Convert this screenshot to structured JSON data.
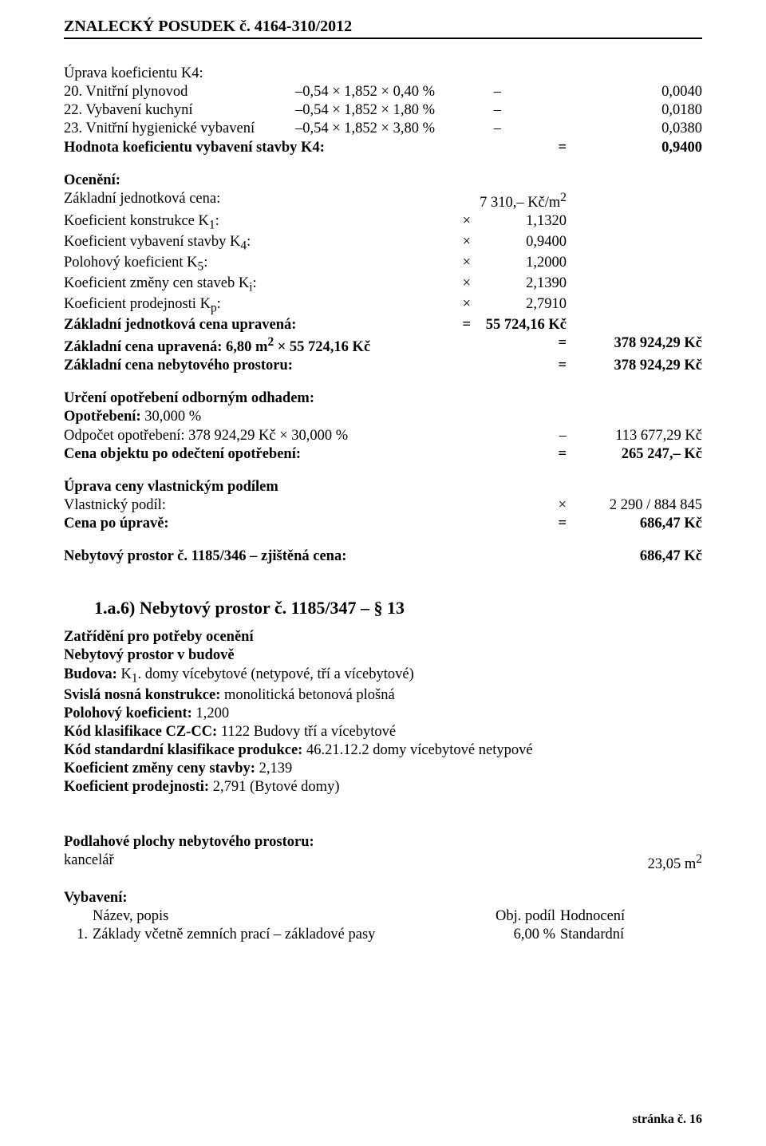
{
  "header": {
    "text": "ZNALECKÝ   POSUDEK č. 4164-310/2012"
  },
  "k4title": "Úprava koeficientu K4:",
  "items": [
    {
      "n": "20.",
      "label": "Vnitřní plynovod",
      "expr": "–0,54 × 1,852 × 0,40 %",
      "sep": "–",
      "val": "0,0040"
    },
    {
      "n": "22.",
      "label": "Vybavení kuchyní",
      "expr": "–0,54 × 1,852 × 1,80 %",
      "sep": "–",
      "val": "0,0180"
    },
    {
      "n": "23.",
      "label": "Vnitřní hygienické vybavení",
      "expr": "–0,54 × 1,852 × 3,80 %",
      "sep": "–",
      "val": "0,0380"
    }
  ],
  "hodnota": {
    "label": "Hodnota koeficientu vybavení stavby K4:",
    "eq": "=",
    "val": "0,9400"
  },
  "oceneni_title": "Ocenění:",
  "calc": [
    {
      "label": "Základní jednotková cena:",
      "op": "",
      "val": "7 310,–  Kč/m2"
    },
    {
      "label": "Koeficient konstrukce K1:",
      "op": "×",
      "val": "1,1320"
    },
    {
      "label": "Koeficient vybavení stavby K4:",
      "op": "×",
      "val": "0,9400"
    },
    {
      "label": "Polohový koeficient K5:",
      "op": "×",
      "val": "1,2000"
    },
    {
      "label": "Koeficient změny cen staveb Ki:",
      "op": "×",
      "val": "2,1390"
    },
    {
      "label": "Koeficient prodejnosti Kp:",
      "op": "×",
      "val": "2,7910"
    },
    {
      "label": "Základní jednotková cena upravená:",
      "op": "=",
      "val": "55 724,16 Kč"
    }
  ],
  "zc_upravena": {
    "label": "Základní cena upravená: 6,80 m2 × 55 724,16 Kč",
    "eq": "=",
    "val": "378 924,29 Kč"
  },
  "zc_nebyt": {
    "label": "Základní cena nebytového prostoru:",
    "eq": "=",
    "val": "378 924,29 Kč"
  },
  "opot_title": "Určení opotřebení odborným odhadem:",
  "opot_line": "Opotřebení: 30,000 %",
  "odpocet": {
    "label": "Odpočet opotřebení: 378 924,29 Kč × 30,000 %",
    "eq": "–",
    "val": "113 677,29 Kč"
  },
  "cena_po_odecteni": {
    "label": "Cena objektu po odečtení opotřebení:",
    "eq": "=",
    "val": "265 247,–  Kč"
  },
  "uprava_podilem": "Úprava ceny vlastnickým podílem",
  "vlastnicky_podil": {
    "label": "Vlastnický podíl:",
    "eq": "×",
    "val": "2 290 / 884 845"
  },
  "cena_po_uprave": {
    "label": "Cena po úpravě:",
    "eq": "=",
    "val": "686,47 Kč"
  },
  "zjistena": {
    "label": "Nebytový prostor č. 1185/346  – zjištěná cena:",
    "val": "686,47 Kč"
  },
  "section": {
    "title": "1.a.6)  Nebytový prostor č. 1185/347 – § 13",
    "zatrideni": "Zatřídění pro potřeby ocenění",
    "lines": [
      {
        "b": "Nebytový prostor v budově",
        "t": ""
      },
      {
        "b": "Budova:",
        "t": " K1. domy vícebytové (netypové, tří a vícebytové)"
      },
      {
        "b": "Svislá nosná konstrukce:",
        "t": " monolitická betonová plošná"
      },
      {
        "b": "Polohový koeficient:",
        "t": " 1,200"
      },
      {
        "b": "Kód klasifikace CZ-CC:",
        "t": " 1122 Budovy tří a vícebytové"
      },
      {
        "b": "Kód standardní klasifikace produkce:",
        "t": " 46.21.12.2     domy vícebytové netypové"
      },
      {
        "b": "Koeficient změny ceny stavby:",
        "t": " 2,139"
      },
      {
        "b": "Koeficient prodejnosti:",
        "t": " 2,791 (Bytové domy)"
      }
    ]
  },
  "podlahove": {
    "label": "Podlahové plochy nebytového prostoru:",
    "item": "kancelář",
    "val": "23,05 m2"
  },
  "vybaveni": {
    "title": "Vybavení:",
    "head": {
      "name": "Název, popis",
      "podil": "Obj. podíl",
      "hodn": "Hodnocení"
    },
    "row": {
      "n": "1.",
      "label": "Základy včetně zemních prací – základové pasy",
      "podil": "6,00 %",
      "hodn": "Standardní"
    }
  },
  "footer": {
    "pre": "stránka č.  ",
    "num": "16"
  }
}
